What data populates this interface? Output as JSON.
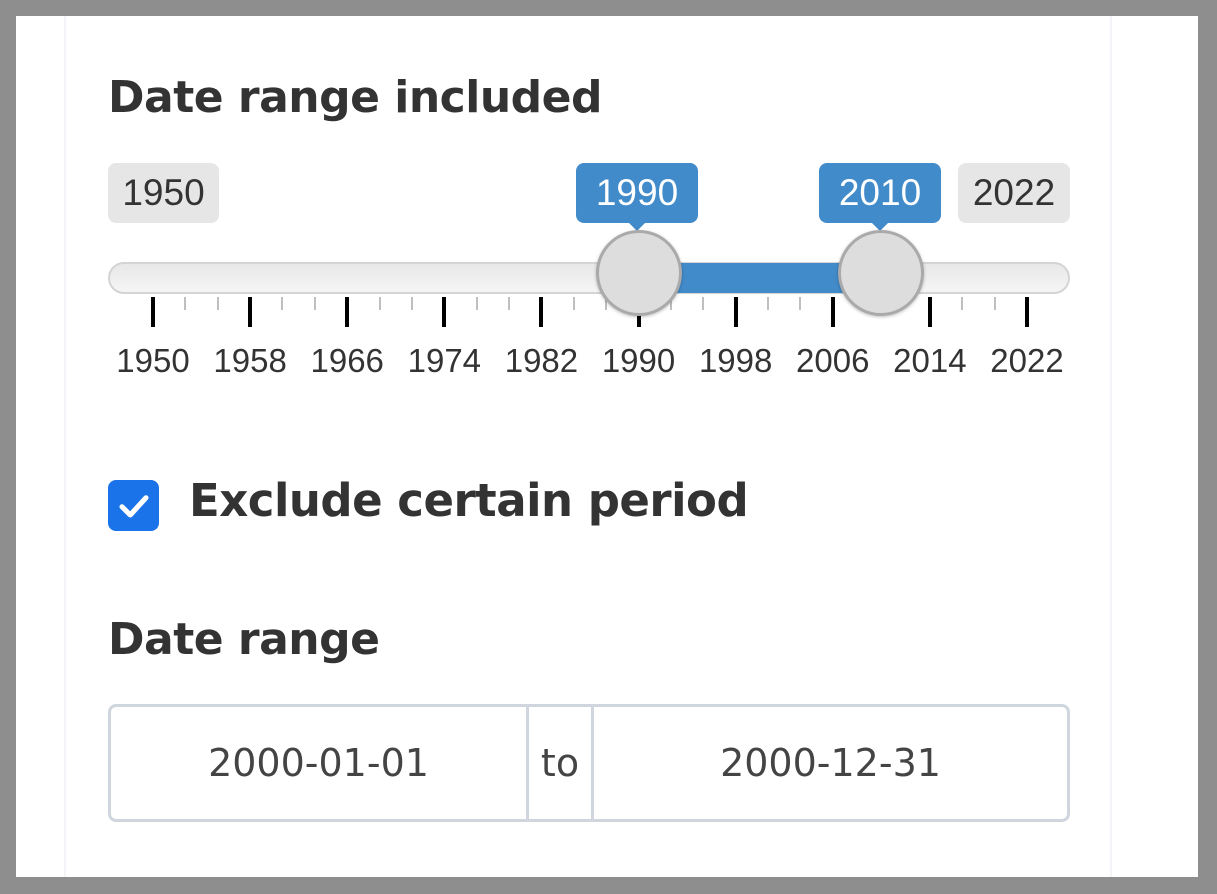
{
  "range_slider": {
    "label": "Date range included",
    "min": 1950,
    "max": 2022,
    "from": 1990,
    "to": 2010,
    "min_label": "1950",
    "max_label": "2022",
    "from_label": "1990",
    "to_label": "2010",
    "tick_labels": [
      "1950",
      "1958",
      "1966",
      "1974",
      "1982",
      "1990",
      "1998",
      "2006",
      "2014",
      "2022"
    ]
  },
  "exclude": {
    "checked": true,
    "label": "Exclude certain period"
  },
  "date_range": {
    "label": "Date range",
    "start": "2000-01-01",
    "separator": "to",
    "end": "2000-12-31"
  },
  "colors": {
    "accent": "#428bca",
    "checkbox": "#1a73e8",
    "text": "#333333"
  },
  "icons": {
    "checkbox_icon": "check-icon"
  }
}
